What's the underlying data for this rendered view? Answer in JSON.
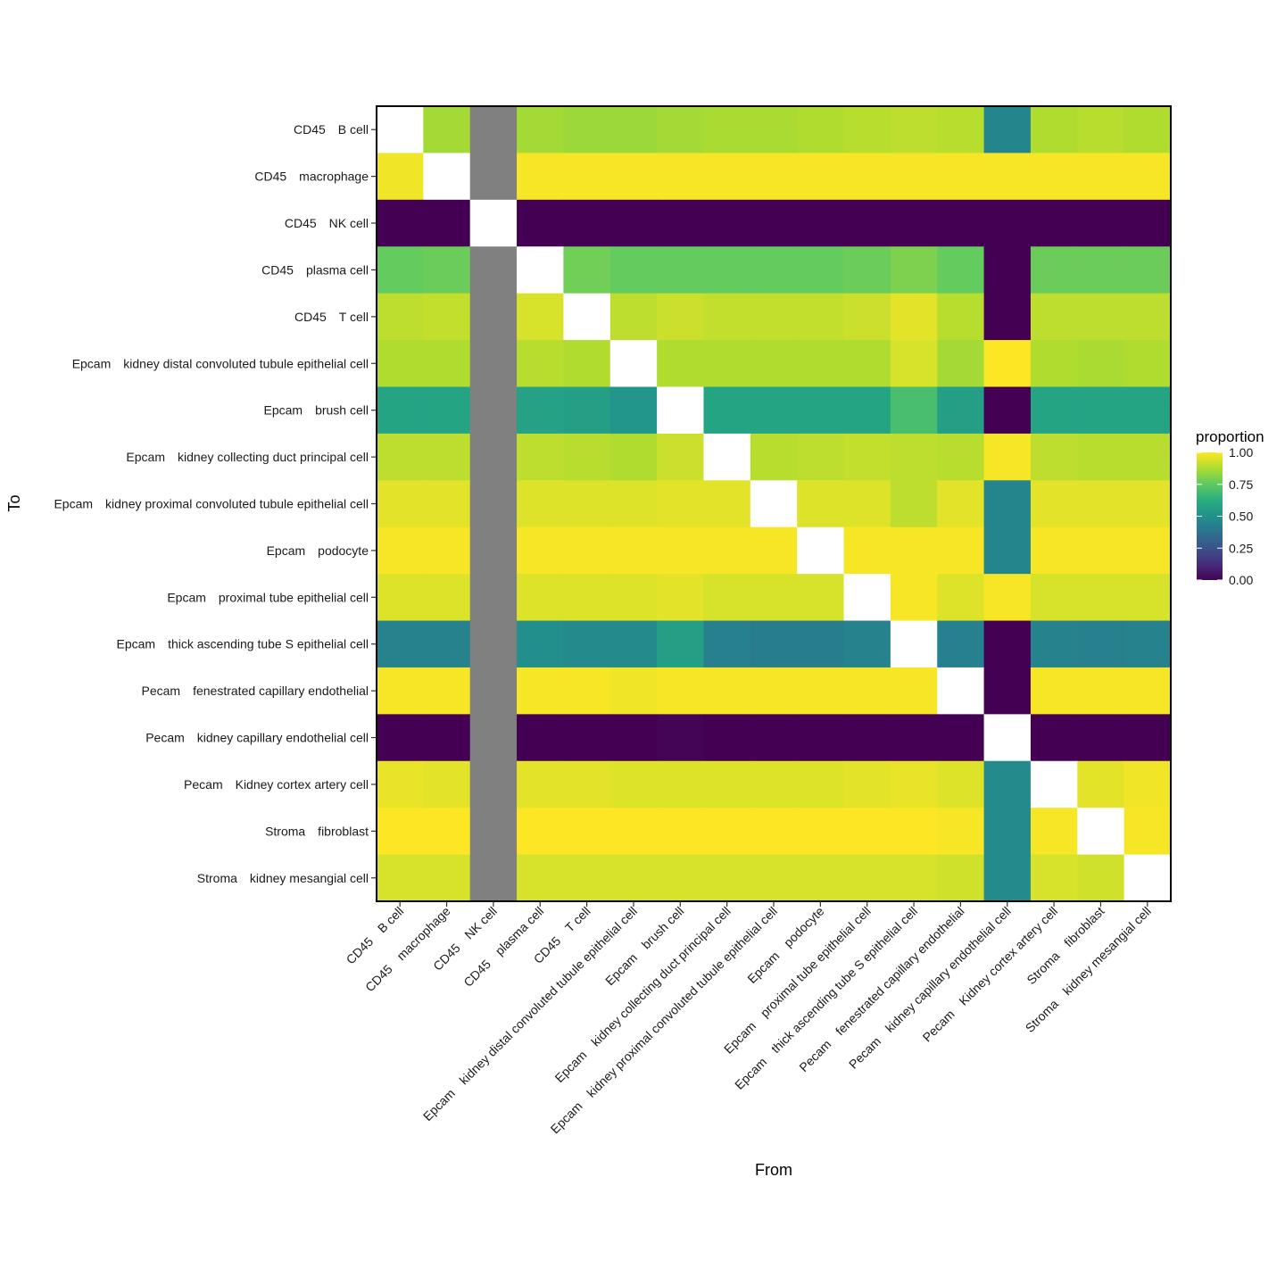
{
  "chart_data": {
    "type": "heatmap",
    "xlabel": "From",
    "ylabel": "To",
    "legend": {
      "title": "proportion",
      "ticks": [
        "1.00",
        "0.75",
        "0.50",
        "0.25",
        "0.00"
      ],
      "tick_values": [
        1.0,
        0.75,
        0.5,
        0.25,
        0.0
      ],
      "placement": "right",
      "colormap": "viridis"
    },
    "categories": [
      "CD45　B cell",
      "CD45　macrophage",
      "CD45　NK cell",
      "CD45　plasma cell",
      "CD45　T cell",
      "Epcam　kidney distal convoluted tubule epithelial cell",
      "Epcam　brush cell",
      "Epcam　kidney collecting duct principal cell",
      "Epcam　kidney proximal convoluted tubule epithelial cell",
      "Epcam　podocyte",
      "Epcam　proximal tube epithelial cell",
      "Epcam　thick ascending tube S epithelial cell",
      "Pecam　fenestrated capillary endothelial",
      "Pecam　kidney capillary endothelial cell",
      "Pecam　Kidney cortex artery cell",
      "Stroma　fibroblast",
      "Stroma　kidney mesangial cell"
    ],
    "missing_color": "#808080",
    "diagonal_color": "#ffffff",
    "values": [
      [
        null,
        0.86,
        "NA",
        0.86,
        0.85,
        0.85,
        0.86,
        0.87,
        0.87,
        0.88,
        0.89,
        0.9,
        0.89,
        0.45,
        0.88,
        0.89,
        0.88
      ],
      [
        0.98,
        null,
        "NA",
        0.99,
        0.99,
        0.99,
        0.99,
        0.99,
        0.99,
        0.99,
        0.99,
        0.99,
        0.99,
        0.99,
        0.99,
        0.99,
        0.99
      ],
      [
        0.0,
        0.0,
        null,
        0.0,
        0.0,
        0.0,
        0.0,
        0.0,
        0.0,
        0.0,
        0.0,
        0.0,
        0.0,
        0.0,
        0.0,
        0.0,
        0.0
      ],
      [
        0.76,
        0.77,
        "NA",
        null,
        0.78,
        0.76,
        0.76,
        0.76,
        0.76,
        0.76,
        0.77,
        0.8,
        0.76,
        0.0,
        0.77,
        0.77,
        0.77
      ],
      [
        0.9,
        0.91,
        "NA",
        0.94,
        null,
        0.9,
        0.92,
        0.91,
        0.91,
        0.91,
        0.92,
        0.96,
        0.89,
        0.0,
        0.9,
        0.9,
        0.9
      ],
      [
        0.88,
        0.88,
        "NA",
        0.89,
        0.88,
        null,
        0.88,
        0.88,
        0.88,
        0.88,
        0.88,
        0.94,
        0.86,
        1.0,
        0.88,
        0.87,
        0.88
      ],
      [
        0.58,
        0.58,
        "NA",
        0.57,
        0.56,
        0.52,
        null,
        0.58,
        0.58,
        0.58,
        0.58,
        0.7,
        0.56,
        0.0,
        0.58,
        0.58,
        0.58
      ],
      [
        0.9,
        0.9,
        "NA",
        0.9,
        0.89,
        0.88,
        0.92,
        null,
        0.89,
        0.9,
        0.91,
        0.9,
        0.89,
        0.99,
        0.9,
        0.89,
        0.89
      ],
      [
        0.96,
        0.96,
        "NA",
        0.95,
        0.95,
        0.95,
        0.96,
        0.96,
        null,
        0.95,
        0.95,
        0.9,
        0.96,
        0.45,
        0.96,
        0.96,
        0.96
      ],
      [
        0.99,
        0.99,
        "NA",
        0.99,
        0.99,
        0.99,
        0.99,
        0.99,
        0.99,
        null,
        0.99,
        0.99,
        0.99,
        0.45,
        0.99,
        0.99,
        0.99
      ],
      [
        0.95,
        0.95,
        "NA",
        0.95,
        0.95,
        0.95,
        0.96,
        0.94,
        0.94,
        0.94,
        null,
        0.99,
        0.95,
        0.99,
        0.94,
        0.94,
        0.94
      ],
      [
        0.44,
        0.44,
        "NA",
        0.49,
        0.47,
        0.47,
        0.56,
        0.43,
        0.42,
        0.42,
        0.44,
        null,
        0.43,
        0.0,
        0.44,
        0.43,
        0.44
      ],
      [
        0.99,
        0.99,
        "NA",
        0.99,
        0.99,
        0.98,
        0.99,
        0.99,
        0.99,
        0.99,
        0.99,
        0.99,
        null,
        0.0,
        0.99,
        0.99,
        0.99
      ],
      [
        0.0,
        0.0,
        "NA",
        0.0,
        0.0,
        0.0,
        0.01,
        0.0,
        0.0,
        0.0,
        0.0,
        0.0,
        0.0,
        null,
        0.0,
        0.0,
        0.0
      ],
      [
        0.97,
        0.96,
        "NA",
        0.96,
        0.96,
        0.95,
        0.95,
        0.95,
        0.95,
        0.95,
        0.96,
        0.97,
        0.95,
        0.47,
        null,
        0.96,
        0.98
      ],
      [
        1.0,
        1.0,
        "NA",
        1.0,
        1.0,
        1.0,
        1.0,
        1.0,
        1.0,
        1.0,
        1.0,
        1.0,
        0.99,
        0.47,
        0.99,
        null,
        0.99
      ],
      [
        0.94,
        0.94,
        "NA",
        0.94,
        0.94,
        0.94,
        0.94,
        0.94,
        0.94,
        0.94,
        0.94,
        0.94,
        0.93,
        0.47,
        0.94,
        0.93,
        null
      ]
    ]
  }
}
